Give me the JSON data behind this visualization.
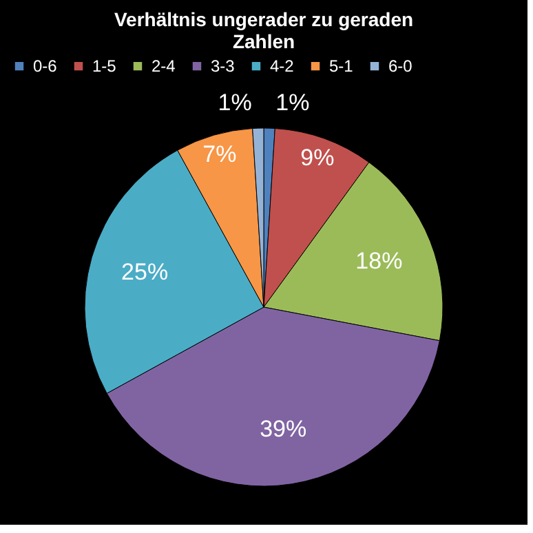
{
  "chart_data": {
    "type": "pie",
    "title": "Verhältnis ungerader zu geraden Zahlen",
    "categories": [
      "0-6",
      "1-5",
      "2-4",
      "3-3",
      "4-2",
      "5-1",
      "6-0"
    ],
    "values": [
      1,
      9,
      18,
      39,
      25,
      7,
      1
    ],
    "value_labels": [
      "1%",
      "9%",
      "18%",
      "39%",
      "25%",
      "7%",
      "1%"
    ],
    "colors": [
      "#4f81bd",
      "#c0504d",
      "#9bbb59",
      "#8064a2",
      "#4bacc6",
      "#f79646",
      "#95b3d7"
    ],
    "legend": "top"
  }
}
